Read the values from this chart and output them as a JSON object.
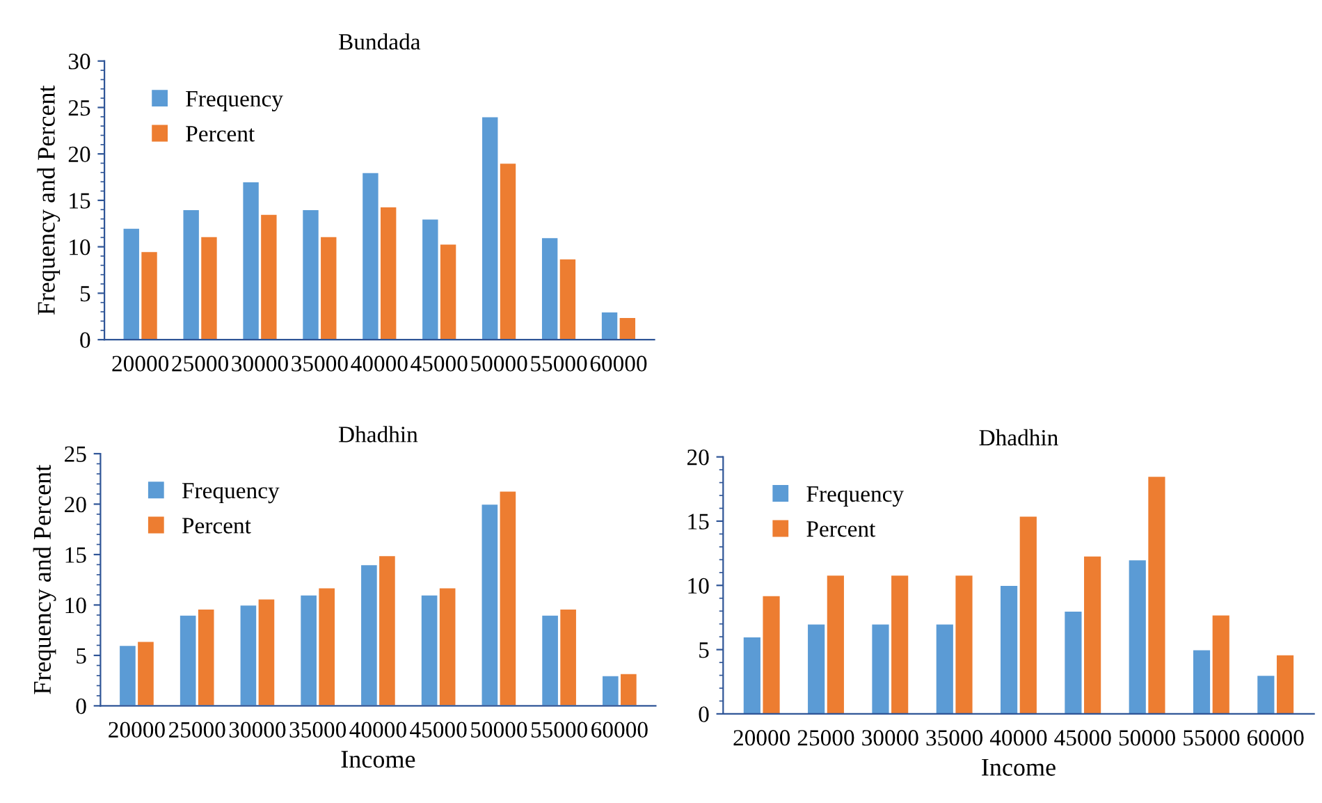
{
  "chart_data": [
    {
      "type": "bar",
      "title": "Bundada",
      "ylabel": "Frequency and Percent",
      "categories": [
        "20000",
        "25000",
        "30000",
        "35000",
        "40000",
        "45000",
        "50000",
        "55000",
        "60000"
      ],
      "series": [
        {
          "name": "Frequency",
          "color": "#5b9bd5",
          "values": [
            12,
            14,
            17,
            14,
            18,
            13,
            24,
            11,
            3
          ]
        },
        {
          "name": "Percent",
          "color": "#ed7d31",
          "values": [
            9.5,
            11.1,
            13.5,
            11.1,
            14.3,
            10.3,
            19,
            8.7,
            2.4
          ]
        }
      ],
      "ylim": [
        0,
        30
      ],
      "yticks": [
        0,
        5,
        10,
        15,
        20,
        25,
        30
      ],
      "grid": false,
      "legend": "top left"
    },
    {
      "type": "bar",
      "title": "Dhadhin",
      "xlabel": "Income",
      "ylabel": "Frequency and Percent",
      "categories": [
        "20000",
        "25000",
        "30000",
        "35000",
        "40000",
        "45000",
        "50000",
        "55000",
        "60000"
      ],
      "series": [
        {
          "name": "Frequency",
          "color": "#5b9bd5",
          "values": [
            6,
            9,
            10,
            11,
            14,
            11,
            20,
            9,
            3
          ]
        },
        {
          "name": "Percent",
          "color": "#ed7d31",
          "values": [
            6.4,
            9.6,
            10.6,
            11.7,
            14.9,
            11.7,
            21.3,
            9.6,
            3.2
          ]
        }
      ],
      "ylim": [
        0,
        25
      ],
      "yticks": [
        0,
        5,
        10,
        15,
        20,
        25
      ],
      "grid": false,
      "legend": "top left"
    },
    {
      "type": "bar",
      "title": "Dhadhin",
      "xlabel": "Income",
      "categories": [
        "20000",
        "25000",
        "30000",
        "35000",
        "40000",
        "45000",
        "50000",
        "55000",
        "60000"
      ],
      "series": [
        {
          "name": "Frequency",
          "color": "#5b9bd5",
          "values": [
            6,
            7,
            7,
            7,
            10,
            8,
            12,
            5,
            3
          ]
        },
        {
          "name": "Percent",
          "color": "#ed7d31",
          "values": [
            9.2,
            10.8,
            10.8,
            10.8,
            15.4,
            12.3,
            18.5,
            7.7,
            4.6
          ]
        }
      ],
      "ylim": [
        0,
        20
      ],
      "yticks": [
        0,
        5,
        10,
        15,
        20
      ],
      "grid": false,
      "legend": "top left"
    }
  ]
}
